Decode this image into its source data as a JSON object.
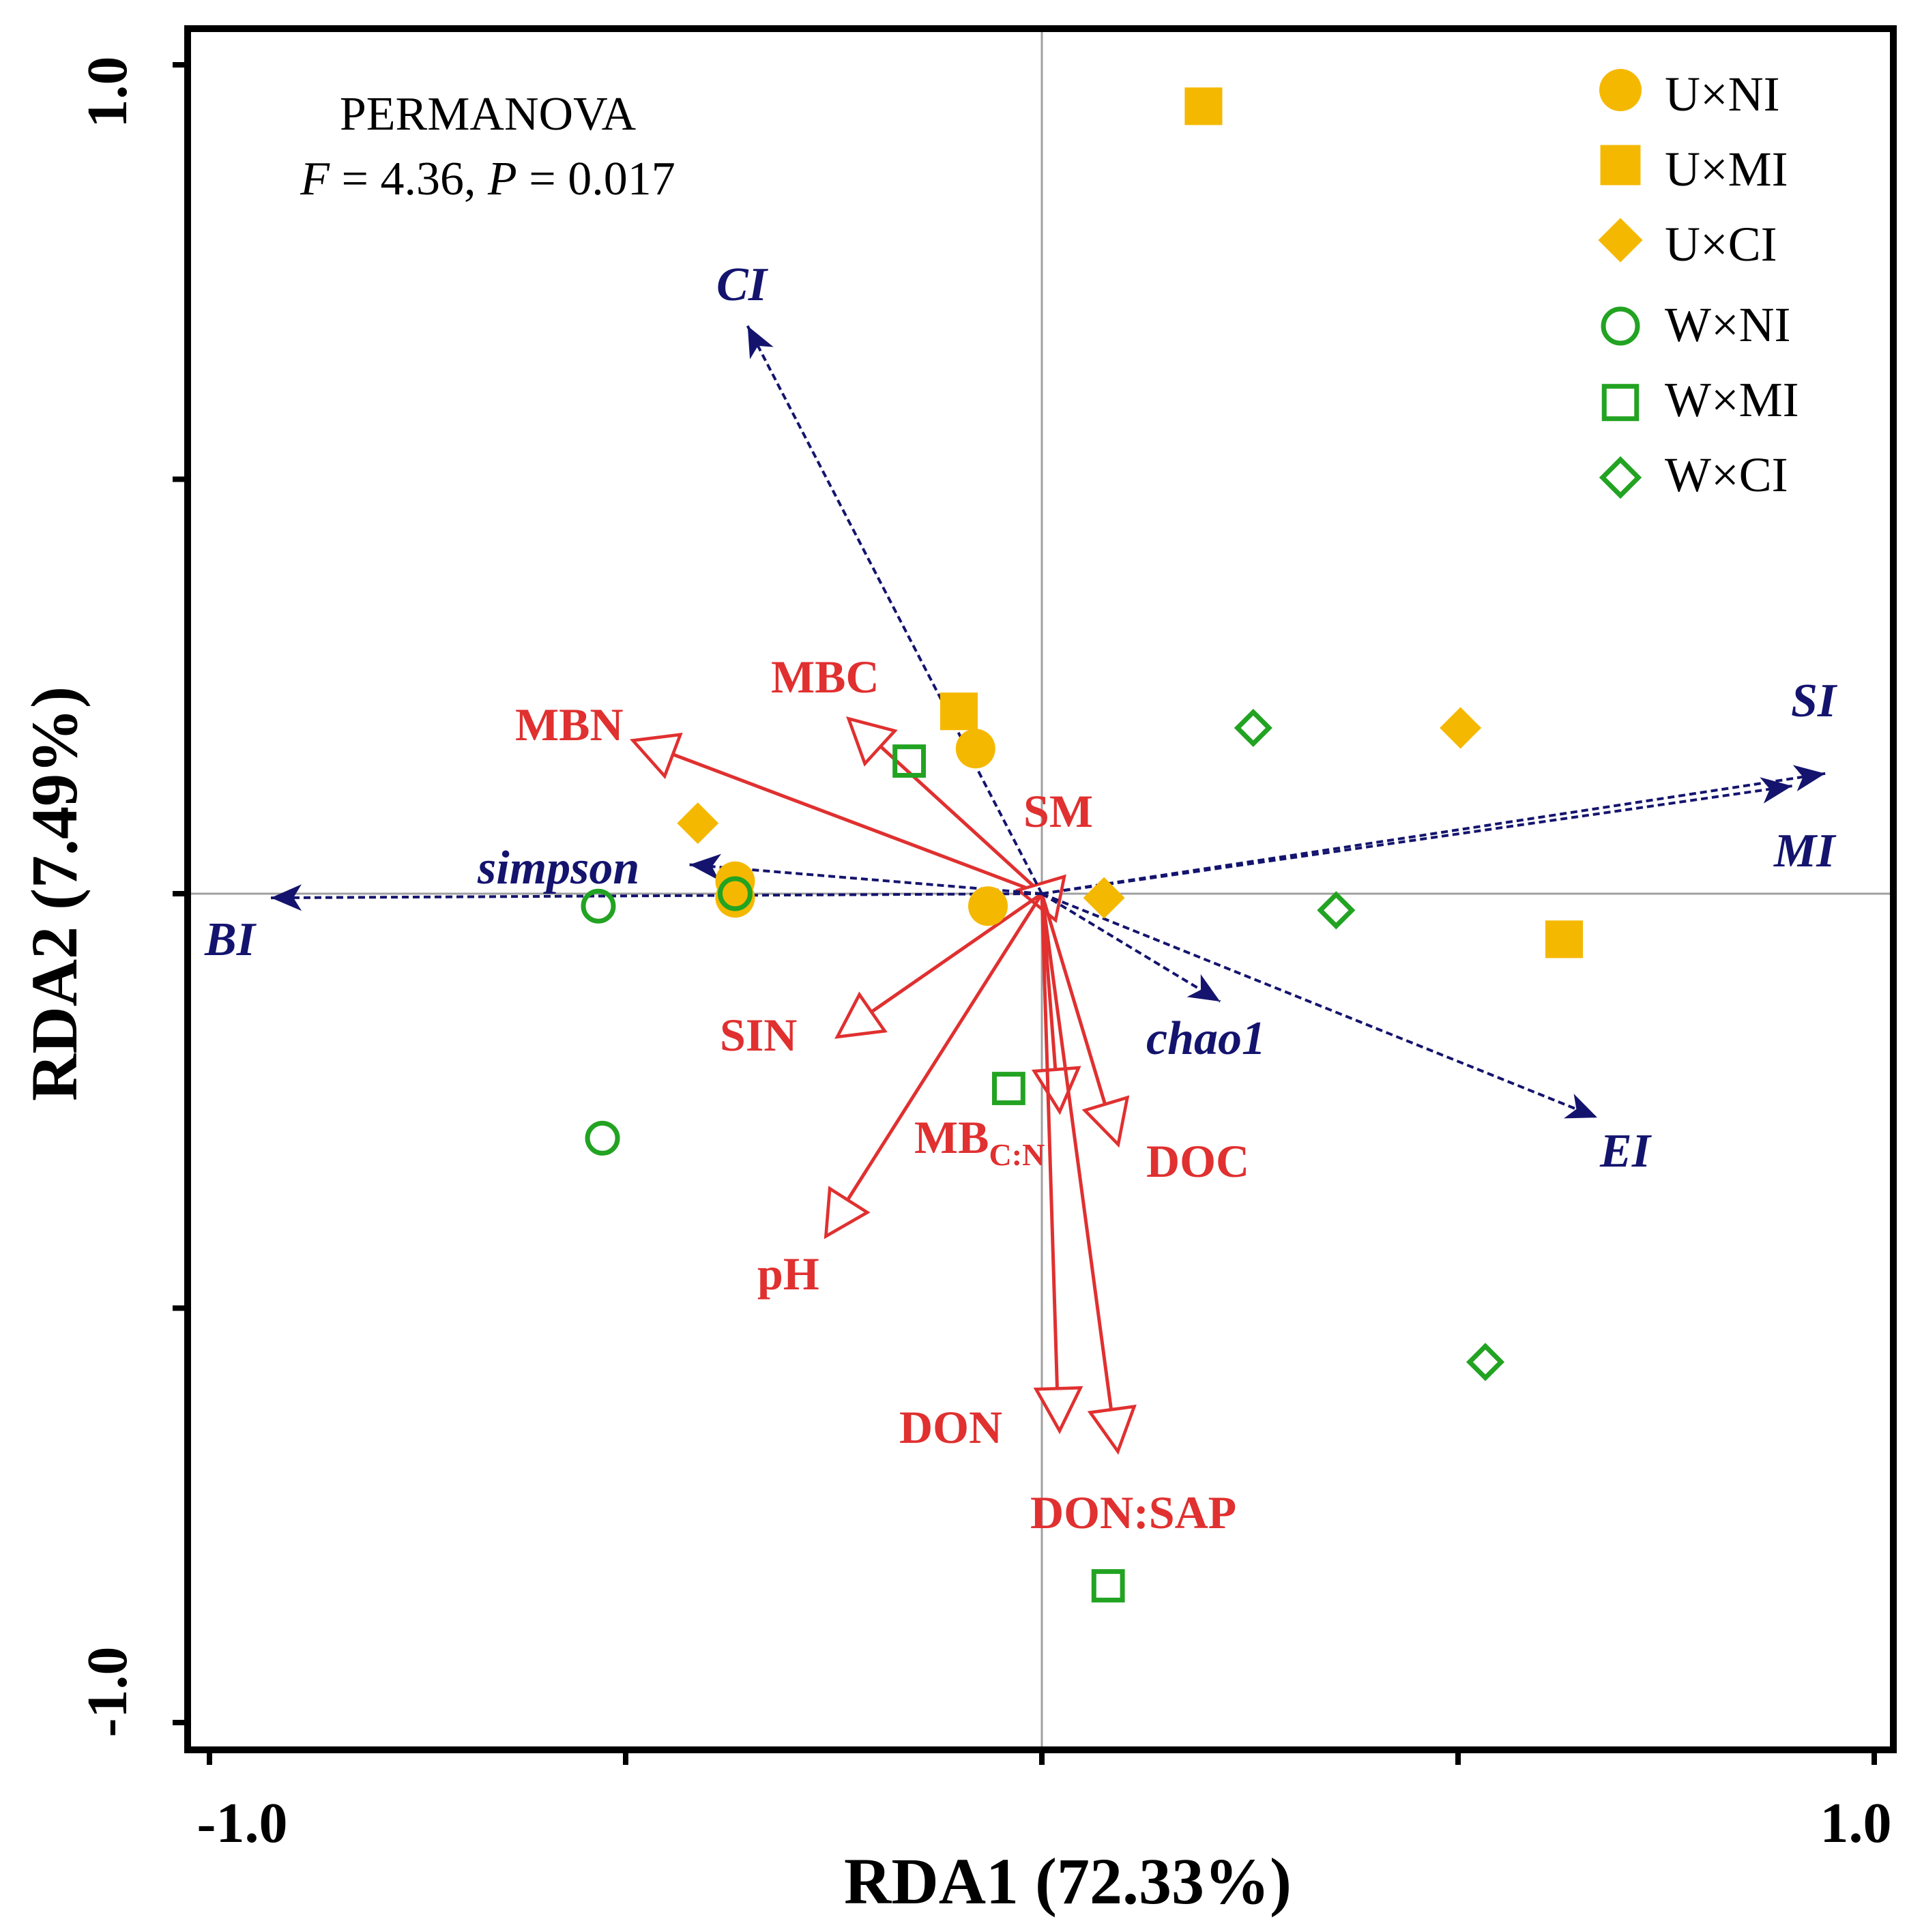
{
  "chart_data": {
    "type": "scatter",
    "subtype": "RDA biplot",
    "xlabel": "RDA1 (72.33%)",
    "ylabel": "RDA2 (7.49%)",
    "xlim": [
      -1.0,
      1.0
    ],
    "ylim": [
      -1.0,
      1.0
    ],
    "x_tick_labels": [
      "-1.0",
      "1.0"
    ],
    "y_tick_labels": [
      "1.0",
      "-1.0"
    ],
    "x_ticks": [
      -1.0,
      -0.5,
      0.0,
      0.5,
      1.0
    ],
    "y_ticks": [
      -1.0,
      -0.5,
      0.0,
      0.5,
      1.0
    ],
    "annotation": {
      "title": "PERMANOVA",
      "f_label": "F",
      "f_value": " = 4.36, ",
      "p_label": "P",
      "p_value": " = 0.017"
    },
    "colors": {
      "U": "#f5b800",
      "W": "#22a322",
      "env": "#e03030",
      "index": "#14146e"
    },
    "legend": [
      {
        "label": "U×NI",
        "shape": "circle",
        "fill": true
      },
      {
        "label": "U×MI",
        "shape": "square",
        "fill": true
      },
      {
        "label": "U×CI",
        "shape": "diamond",
        "fill": true
      },
      {
        "label": "W×NI",
        "shape": "circle",
        "fill": false
      },
      {
        "label": "W×MI",
        "shape": "square",
        "fill": false
      },
      {
        "label": "W×CI",
        "shape": "diamond",
        "fill": false
      }
    ],
    "series": [
      {
        "name": "U×NI",
        "shape": "circle",
        "fill": true,
        "points": [
          [
            -0.08,
            0.175
          ],
          [
            -0.37,
            0.015
          ],
          [
            -0.065,
            -0.015
          ],
          [
            -0.37,
            -0.005
          ]
        ]
      },
      {
        "name": "U×MI",
        "shape": "square",
        "fill": true,
        "points": [
          [
            0.195,
            0.95
          ],
          [
            -0.1,
            0.22
          ],
          [
            0.63,
            -0.055
          ]
        ]
      },
      {
        "name": "U×CI",
        "shape": "diamond",
        "fill": true,
        "points": [
          [
            -0.415,
            0.085
          ],
          [
            0.075,
            -0.005
          ],
          [
            0.505,
            0.2
          ]
        ]
      },
      {
        "name": "W×NI",
        "shape": "circle",
        "fill": false,
        "points": [
          [
            -0.535,
            -0.015
          ],
          [
            -0.37,
            0.0
          ],
          [
            -0.53,
            -0.295
          ]
        ]
      },
      {
        "name": "W×MI",
        "shape": "square",
        "fill": false,
        "points": [
          [
            -0.16,
            0.16
          ],
          [
            -0.04,
            -0.235
          ],
          [
            0.08,
            -0.835
          ]
        ]
      },
      {
        "name": "W×CI",
        "shape": "diamond",
        "fill": false,
        "points": [
          [
            0.255,
            0.2
          ],
          [
            0.355,
            -0.02
          ],
          [
            0.535,
            -0.565
          ]
        ]
      }
    ],
    "environment_vectors": [
      {
        "label": "MBN",
        "x": -0.49,
        "y": 0.185
      },
      {
        "label": "MBC",
        "x": -0.23,
        "y": 0.21
      },
      {
        "label": "SM",
        "x": -0.025,
        "y": 0.005
      },
      {
        "label": "SIN",
        "x": -0.245,
        "y": -0.17
      },
      {
        "label": "pH",
        "x": -0.26,
        "y": -0.41
      },
      {
        "label": "MB",
        "subscript": "C:N",
        "x": 0.02,
        "y": -0.26
      },
      {
        "label": "DOC",
        "x": 0.09,
        "y": -0.3
      },
      {
        "label": "DON",
        "x": 0.02,
        "y": -0.645
      },
      {
        "label": "DON:SAP",
        "x": 0.09,
        "y": -0.67
      }
    ],
    "index_vectors": [
      {
        "label": "CI",
        "x": -0.355,
        "y": 0.685
      },
      {
        "label": "SI",
        "x": 0.945,
        "y": 0.145
      },
      {
        "label": "MI",
        "x": 0.905,
        "y": 0.13
      },
      {
        "label": "simpson",
        "x": -0.425,
        "y": 0.035
      },
      {
        "label": "BI",
        "x": -0.93,
        "y": -0.005
      },
      {
        "label": "chao1",
        "x": 0.215,
        "y": -0.13
      },
      {
        "label": "EI",
        "x": 0.67,
        "y": -0.27
      }
    ]
  }
}
